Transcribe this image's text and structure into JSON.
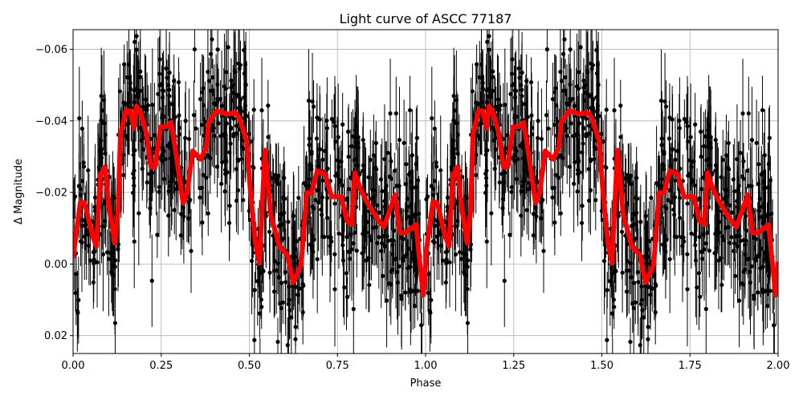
{
  "chart_data": {
    "type": "scatter",
    "title": "Light curve of ASCC 77187",
    "xlabel": "Phase",
    "ylabel": "Δ Magnitude",
    "xlim": [
      0,
      2
    ],
    "ylim": [
      0.025,
      -0.0655
    ],
    "y_inverted": true,
    "grid": true,
    "x_ticks": [
      0,
      0.25,
      0.5,
      0.75,
      1.0,
      1.25,
      1.5,
      1.75,
      2.0
    ],
    "x_tick_labels": [
      "0.00",
      "0.25",
      "0.50",
      "0.75",
      "1.00",
      "1.25",
      "1.50",
      "1.75",
      "2.00"
    ],
    "y_ticks": [
      -0.06,
      -0.04,
      -0.02,
      0.0,
      0.02
    ],
    "y_tick_labels": [
      "−0.06",
      "−0.04",
      "−0.02",
      "0.00",
      "0.02"
    ],
    "colors": {
      "observations": "#000000",
      "model": "#ff0000",
      "grid": "#b0b0b0"
    },
    "observations": {
      "description_series": "Phase-folded photometry with error bars (black)",
      "count_approx": 1600,
      "scatter_sigma": 0.012,
      "error_range": [
        0.005,
        0.016
      ]
    },
    "model_period_repeat": 1,
    "model_curve": {
      "name": "Binned mean (red)",
      "phase": [
        0.0,
        0.0205,
        0.0319,
        0.0387,
        0.0547,
        0.0661,
        0.0774,
        0.0911,
        0.1002,
        0.1185,
        0.1276,
        0.1344,
        0.1503,
        0.1617,
        0.1731,
        0.18,
        0.1913,
        0.2073,
        0.221,
        0.2323,
        0.2483,
        0.2711,
        0.2779,
        0.2893,
        0.3121,
        0.3235,
        0.3394,
        0.3622,
        0.3781,
        0.385,
        0.4077,
        0.4351,
        0.4601,
        0.4715,
        0.492,
        0.5034,
        0.5171,
        0.5285,
        0.5444,
        0.5604,
        0.5854,
        0.6082,
        0.6241,
        0.6469,
        0.6629,
        0.6765,
        0.6925,
        0.7153,
        0.7335,
        0.7608,
        0.7768,
        0.7904,
        0.7995,
        0.8132,
        0.8292,
        0.8588,
        0.8815,
        0.9134,
        0.9271,
        0.9431,
        0.9727,
        0.9932,
        1.0
      ],
      "mag": [
        -0.002,
        -0.0172,
        -0.0172,
        -0.0148,
        -0.0081,
        -0.0049,
        -0.0249,
        -0.0271,
        -0.017,
        -0.0058,
        -0.0148,
        -0.0363,
        -0.0428,
        -0.0428,
        -0.0379,
        -0.0441,
        -0.0423,
        -0.0367,
        -0.0271,
        -0.0271,
        -0.0383,
        -0.0385,
        -0.0396,
        -0.0327,
        -0.017,
        -0.0199,
        -0.0316,
        -0.0293,
        -0.0327,
        -0.0396,
        -0.0428,
        -0.0419,
        -0.0423,
        -0.0408,
        -0.0345,
        -0.0199,
        -0.006,
        -0.0002,
        -0.0318,
        -0.0139,
        -0.0049,
        -0.0025,
        0.0052,
        0.0002,
        -0.0199,
        -0.0199,
        -0.026,
        -0.0251,
        -0.0188,
        -0.0188,
        -0.0121,
        -0.011,
        -0.0255,
        -0.0215,
        -0.0181,
        -0.0132,
        -0.0103,
        -0.0193,
        -0.0087,
        -0.0087,
        -0.011,
        0.0087,
        0.0
      ]
    }
  }
}
